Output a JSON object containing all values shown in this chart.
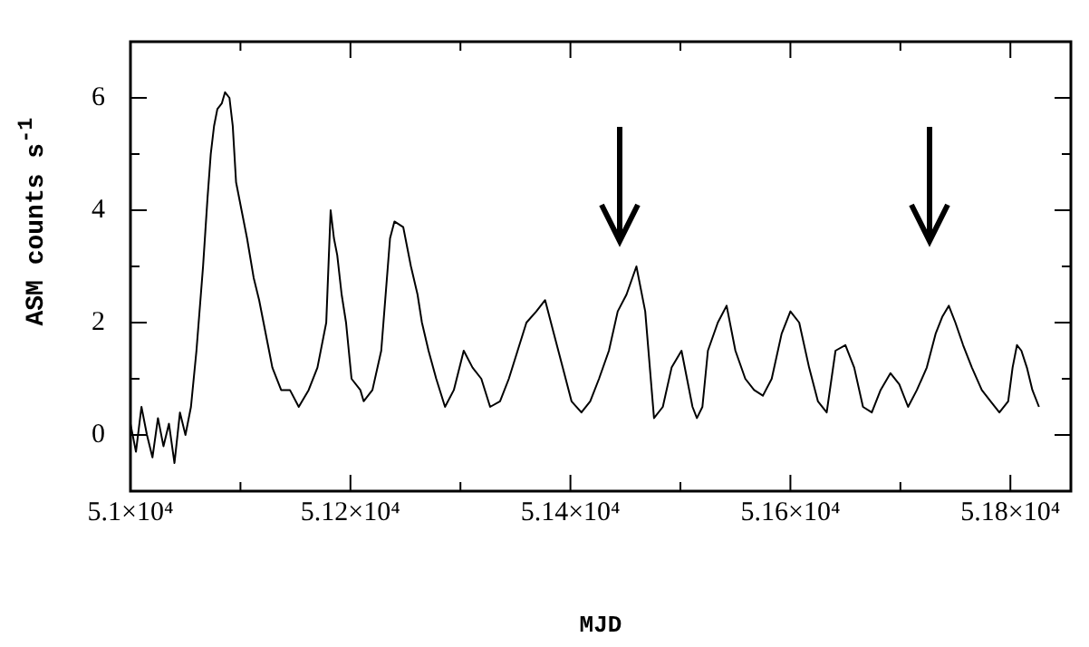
{
  "chart_data": {
    "type": "line",
    "xlabel": "MJD",
    "ylabel": "ASM counts s$^{-1}$",
    "x": [
      51000,
      51005,
      51010,
      51015,
      51020,
      51025,
      51030,
      51035,
      51040,
      51045,
      51050,
      51055,
      51060,
      51066,
      51070,
      51073,
      51076,
      51079,
      51083,
      51086,
      51090,
      51093,
      51096,
      51101,
      51106,
      51112,
      51117,
      51121,
      51125,
      51129,
      51137,
      51145,
      51153,
      51162,
      51170,
      51178,
      51182,
      51185,
      51188,
      51192,
      51196,
      51201,
      51209,
      51212,
      51220,
      51228,
      51236,
      51240,
      51248,
      51255,
      51261,
      51265,
      51271,
      51278,
      51286,
      51294,
      51303,
      51311,
      51319,
      51327,
      51336,
      51344,
      51352,
      51360,
      51369,
      51377,
      51385,
      51393,
      51401,
      51410,
      51418,
      51426,
      51435,
      51443,
      51451,
      51460,
      51468,
      51476,
      51484,
      51492,
      51501,
      51506,
      51511,
      51515,
      51520,
      51525,
      51534,
      51542,
      51550,
      51559,
      51567,
      51575,
      51583,
      51592,
      51600,
      51608,
      51617,
      51625,
      51633,
      51641,
      51650,
      51658,
      51666,
      51674,
      51682,
      51691,
      51699,
      51707,
      51715,
      51724,
      51732,
      51738,
      51744,
      51750,
      51757,
      51765,
      51774,
      51782,
      51790,
      51798,
      51802,
      51806,
      51810,
      51815,
      51820,
      51826
    ],
    "series": [
      {
        "color": "#000000",
        "values": [
          0.2,
          -0.3,
          0.5,
          0,
          -0.4,
          0.3,
          -0.2,
          0.2,
          -0.5,
          0.4,
          0,
          0.5,
          1.5,
          3,
          4.2,
          5,
          5.5,
          5.8,
          5.9,
          6.1,
          6,
          5.5,
          4.5,
          4,
          3.5,
          2.8,
          2.4,
          2,
          1.6,
          1.2,
          0.8,
          0.8,
          0.5,
          0.8,
          1.2,
          2,
          4,
          3.5,
          3.2,
          2.5,
          2,
          1,
          0.8,
          0.6,
          0.8,
          1.5,
          3.5,
          3.8,
          3.7,
          3,
          2.5,
          2,
          1.5,
          1,
          0.5,
          0.8,
          1.5,
          1.2,
          1,
          0.5,
          0.6,
          1,
          1.5,
          2,
          2.2,
          2.4,
          1.8,
          1.2,
          0.6,
          0.4,
          0.6,
          1,
          1.5,
          2.2,
          2.5,
          3,
          2.2,
          0.3,
          0.5,
          1.2,
          1.5,
          1,
          0.5,
          0.3,
          0.5,
          1.5,
          2,
          2.3,
          1.5,
          1,
          0.8,
          0.7,
          1,
          1.8,
          2.2,
          2,
          1.2,
          0.6,
          0.4,
          1.5,
          1.6,
          1.2,
          0.5,
          0.4,
          0.8,
          1.1,
          0.9,
          0.5,
          0.8,
          1.2,
          1.8,
          2.1,
          2.3,
          2,
          1.6,
          1.2,
          0.8,
          0.6,
          0.4,
          0.6,
          1.2,
          1.6,
          1.5,
          1.2,
          0.8,
          0.5
        ]
      }
    ],
    "xlim": [
      51000,
      51855
    ],
    "xticks": [
      {
        "value": 51000,
        "label": "5.1×10⁴"
      },
      {
        "value": 51100,
        "label": null
      },
      {
        "value": 51200,
        "label": "5.12×10⁴"
      },
      {
        "value": 51300,
        "label": null
      },
      {
        "value": 51400,
        "label": "5.14×10⁴"
      },
      {
        "value": 51500,
        "label": null
      },
      {
        "value": 51600,
        "label": "5.16×10⁴"
      },
      {
        "value": 51700,
        "label": null
      },
      {
        "value": 51800,
        "label": "5.18×10⁴"
      }
    ],
    "ylim": [
      -1,
      7
    ],
    "yticks": [
      {
        "value": -1,
        "label": null
      },
      0,
      {
        "value": 1,
        "label": null
      },
      2,
      {
        "value": 3,
        "label": null
      },
      4,
      {
        "value": 5,
        "label": null
      },
      6,
      {
        "value": 7,
        "label": null
      }
    ],
    "marker": "none",
    "line_style": "solid",
    "grid": false,
    "legend": false
  }
}
